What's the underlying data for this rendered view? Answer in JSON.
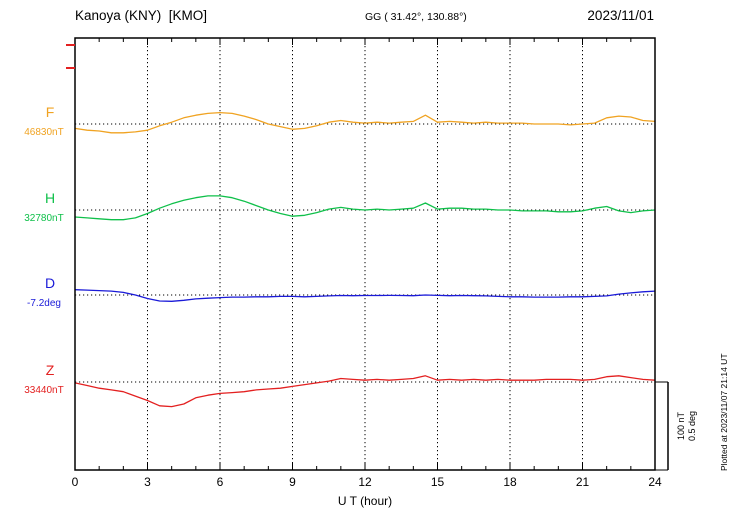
{
  "header": {
    "station": "Kanoya (KNY)  [KMO]",
    "coords": "GG ( 31.42°, 130.88°)",
    "date": "2023/11/01"
  },
  "xlabel": "U T (hour)",
  "scale_bar": {
    "label_nT": "100 nT",
    "label_deg": "0.5 deg"
  },
  "plotted_at": "Plotted at 2023/11/07 21:14 UT",
  "chart_data": {
    "type": "line",
    "title": "Kanoya (KNY) magnetogram 2023/11/01",
    "x_unit": "UT hour",
    "x_range": [
      0,
      24
    ],
    "x_step": 0.5,
    "x_ticks": [
      0,
      3,
      6,
      9,
      12,
      15,
      18,
      21,
      24
    ],
    "grid": "dotted vertical lines every 3 h; dotted horizontal baseline per trace",
    "scale": {
      "nT_per_bar": 100,
      "deg_per_bar": 0.5
    },
    "series": [
      {
        "name": "F",
        "units": "nT",
        "baseline_label": "46830nT",
        "color": "#f0a322",
        "values": [
          -5,
          -7,
          -8,
          -10,
          -10,
          -9,
          -7,
          -2,
          2,
          7,
          10,
          12,
          13,
          12,
          9,
          5,
          0,
          -3,
          -6,
          -5,
          -2,
          2,
          4,
          2,
          1,
          2,
          1,
          2,
          3,
          10,
          2,
          3,
          2,
          1,
          2,
          1,
          1,
          1,
          0,
          0,
          0,
          -1,
          0,
          1,
          7,
          9,
          8,
          4,
          3
        ]
      },
      {
        "name": "H",
        "units": "nT",
        "baseline_label": "32780nT",
        "color": "#0fc04a",
        "values": [
          -8,
          -9,
          -10,
          -11,
          -11,
          -9,
          -4,
          2,
          7,
          11,
          14,
          16,
          16,
          14,
          10,
          5,
          0,
          -4,
          -7,
          -6,
          -3,
          1,
          3,
          1,
          0,
          1,
          0,
          1,
          2,
          8,
          1,
          2,
          2,
          1,
          1,
          0,
          0,
          -1,
          -1,
          -1,
          -2,
          -2,
          -1,
          2,
          4,
          -1,
          -3,
          -1,
          0
        ]
      },
      {
        "name": "D",
        "units": "deg",
        "baseline_label": "-7.2deg",
        "color": "#1a1ad8",
        "values": [
          0.03,
          0.028,
          0.025,
          0.022,
          0.015,
          0.0,
          -0.02,
          -0.034,
          -0.036,
          -0.03,
          -0.022,
          -0.018,
          -0.015,
          -0.012,
          -0.012,
          -0.01,
          -0.01,
          -0.008,
          -0.008,
          -0.01,
          -0.008,
          -0.005,
          -0.003,
          -0.004,
          -0.003,
          -0.003,
          -0.002,
          -0.003,
          -0.004,
          0.0,
          -0.002,
          -0.004,
          -0.003,
          -0.004,
          -0.005,
          -0.008,
          -0.01,
          -0.01,
          -0.012,
          -0.012,
          -0.012,
          -0.01,
          -0.01,
          -0.008,
          -0.005,
          0.005,
          0.012,
          0.018,
          0.022
        ]
      },
      {
        "name": "Z",
        "units": "nT",
        "baseline_label": "33440nT",
        "color": "#e32020",
        "values": [
          -1,
          -4,
          -7,
          -9,
          -11,
          -16,
          -21,
          -27,
          -28,
          -25,
          -18,
          -15,
          -13,
          -12,
          -11,
          -9,
          -8,
          -7,
          -5,
          -3,
          -1,
          1,
          4,
          3,
          2,
          3,
          2,
          3,
          4,
          7,
          2,
          3,
          2,
          3,
          2,
          3,
          2,
          2,
          2,
          3,
          3,
          3,
          2,
          3,
          6,
          7,
          5,
          3,
          2
        ]
      }
    ]
  }
}
